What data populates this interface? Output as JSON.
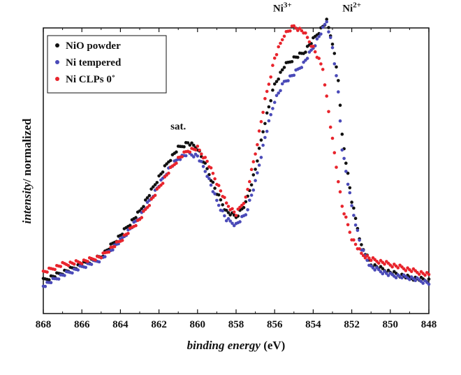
{
  "chart_data": {
    "type": "scatter",
    "xlabel_italic": "binding energy",
    "xlabel_unit": "(eV)",
    "ylabel_italic": "intensity",
    "ylabel_rest": "/ normalized",
    "xlim": [
      868,
      848
    ],
    "ylim": [
      0,
      1.08
    ],
    "x_reversed": true,
    "x_ticks": [
      "868",
      "866",
      "864",
      "862",
      "860",
      "858",
      "856",
      "854",
      "852",
      "850",
      "848"
    ],
    "y_ticks": [],
    "grid": false,
    "legend_position": "top-left",
    "annotations": [
      {
        "text": "sat.",
        "x": 861.0,
        "y": 0.58
      },
      {
        "base": "Ni",
        "sup": "3+",
        "x": 855.6,
        "y": 1.0
      },
      {
        "base": "Ni",
        "sup": "2+",
        "x": 852.0,
        "y": 1.0
      }
    ],
    "series": [
      {
        "name": "NiO powder",
        "color": "#111111",
        "x": [
          868,
          867,
          866,
          865,
          864,
          863,
          862,
          861.5,
          861,
          860.5,
          860,
          859.5,
          859,
          858.5,
          858,
          857.5,
          857,
          856.5,
          856,
          855.5,
          855,
          854.5,
          854,
          853.5,
          853.3,
          853,
          852.7,
          852.5,
          852,
          851.5,
          851,
          850,
          849,
          848
        ],
        "y": [
          0.02,
          0.05,
          0.08,
          0.11,
          0.19,
          0.28,
          0.41,
          0.47,
          0.52,
          0.54,
          0.52,
          0.44,
          0.35,
          0.28,
          0.26,
          0.31,
          0.44,
          0.62,
          0.76,
          0.83,
          0.86,
          0.88,
          0.93,
          0.98,
          1.0,
          0.92,
          0.78,
          0.57,
          0.32,
          0.15,
          0.08,
          0.05,
          0.03,
          0.02
        ]
      },
      {
        "name": "Ni tempered",
        "color": "#4a4ab8",
        "x": [
          868,
          867,
          866,
          865,
          864,
          863,
          862,
          861.5,
          861,
          860.5,
          860,
          859.5,
          859,
          858.5,
          858,
          857.5,
          857,
          856.5,
          856,
          855.5,
          855,
          854.5,
          854,
          853.5,
          853.3,
          853,
          852.7,
          852.5,
          852,
          851.5,
          851,
          850,
          849,
          848
        ],
        "y": [
          0.0,
          0.04,
          0.07,
          0.1,
          0.17,
          0.26,
          0.38,
          0.44,
          0.48,
          0.5,
          0.49,
          0.42,
          0.32,
          0.25,
          0.23,
          0.27,
          0.39,
          0.56,
          0.7,
          0.77,
          0.8,
          0.84,
          0.9,
          0.97,
          1.0,
          0.9,
          0.73,
          0.52,
          0.3,
          0.14,
          0.07,
          0.04,
          0.03,
          0.01
        ]
      },
      {
        "name": "Ni CLPs 0˚",
        "color": "#e8242c",
        "x": [
          868,
          867,
          866,
          865,
          864,
          863,
          862,
          861.5,
          861,
          860.5,
          860,
          859.5,
          859,
          858.5,
          858,
          857.5,
          857,
          856.5,
          856,
          855.5,
          855,
          854.5,
          854,
          853.5,
          853,
          852.7,
          852.5,
          852,
          851.5,
          851,
          850,
          849,
          848
        ],
        "y": [
          0.05,
          0.08,
          0.09,
          0.11,
          0.17,
          0.25,
          0.37,
          0.43,
          0.48,
          0.51,
          0.52,
          0.47,
          0.39,
          0.31,
          0.27,
          0.33,
          0.5,
          0.7,
          0.86,
          0.95,
          0.98,
          0.96,
          0.9,
          0.82,
          0.55,
          0.4,
          0.3,
          0.18,
          0.12,
          0.1,
          0.08,
          0.06,
          0.04
        ]
      }
    ]
  }
}
